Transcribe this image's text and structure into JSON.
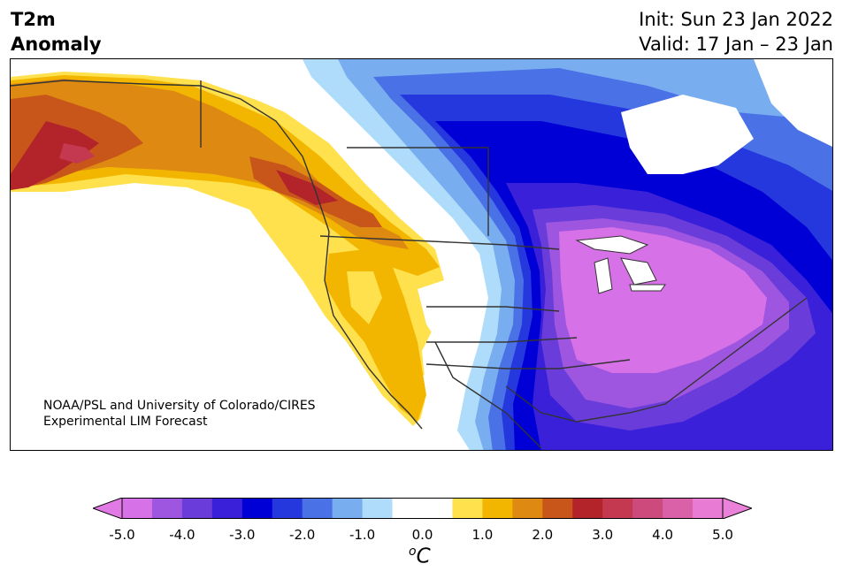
{
  "header": {
    "variable": "T2m",
    "kind": "Anomaly",
    "init": "Init: Sun 23 Jan 2022",
    "valid": "Valid: 17 Jan – 23 Jan"
  },
  "credit": {
    "line1": "NOAA/PSL and University of Colorado/CIRES",
    "line2": "Experimental LIM Forecast"
  },
  "colorbar": {
    "ticks": [
      "-5.0",
      "-4.0",
      "-3.0",
      "-2.0",
      "-1.0",
      "0.0",
      "1.0",
      "2.0",
      "3.0",
      "4.0",
      "5.0"
    ],
    "units_base": "C",
    "units_super": "o",
    "colors": [
      "#d771e8",
      "#9e55e0",
      "#6a3ddb",
      "#3a20d8",
      "#0000d6",
      "#2538de",
      "#4a72e6",
      "#78aef0",
      "#aedcfa",
      "#ffffff",
      "#ffffff",
      "#ffe04d",
      "#f2b600",
      "#de8a12",
      "#c8561a",
      "#b3242a",
      "#c43850",
      "#cc4b7c",
      "#da60a8",
      "#e87cd4"
    ],
    "under_color": "#e27ae6",
    "over_color": "#ea82da"
  }
}
